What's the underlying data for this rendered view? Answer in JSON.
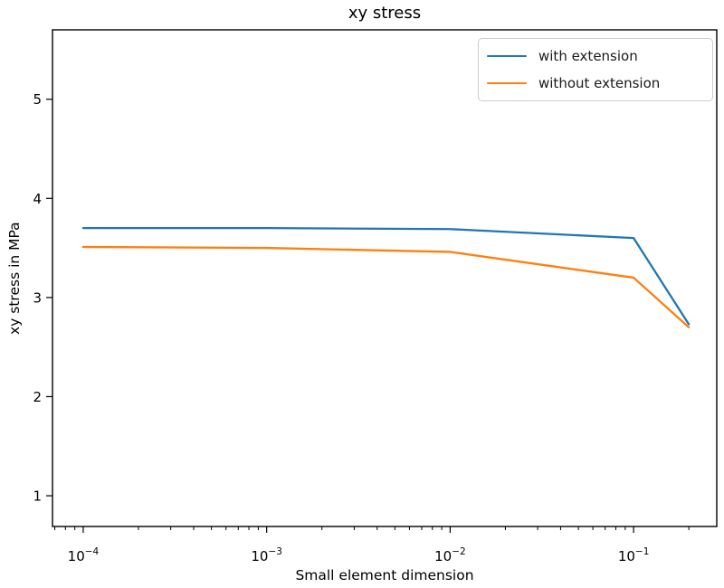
{
  "chart_data": {
    "type": "line",
    "title": "xy stress",
    "xlabel": "Small element dimension",
    "ylabel": "xy stress in MPa",
    "x_scale": "log",
    "y_scale": "linear",
    "grid": false,
    "xlim": [
      6.8e-05,
      0.284
    ],
    "ylim": [
      0.69,
      5.7
    ],
    "x": [
      0.0001,
      0.001,
      0.01,
      0.1,
      0.2
    ],
    "series": [
      {
        "name": "with extension",
        "color": "#1f77b4",
        "values": [
          3.7,
          3.7,
          3.69,
          3.6,
          2.73
        ]
      },
      {
        "name": "without extension",
        "color": "#ff7f0e",
        "values": [
          3.51,
          3.5,
          3.46,
          3.2,
          2.7
        ]
      }
    ],
    "yticks": [
      1,
      2,
      3,
      4,
      5
    ],
    "xticks": [
      {
        "value": 0.0001,
        "base": "10",
        "exp": "−4"
      },
      {
        "value": 0.001,
        "base": "10",
        "exp": "−3"
      },
      {
        "value": 0.01,
        "base": "10",
        "exp": "−2"
      },
      {
        "value": 0.1,
        "base": "10",
        "exp": "−1"
      }
    ],
    "legend": {
      "position": "upper right",
      "entries": [
        "with extension",
        "without extension"
      ]
    },
    "axis_color": "#000000",
    "tick_label_color": "#000000"
  }
}
